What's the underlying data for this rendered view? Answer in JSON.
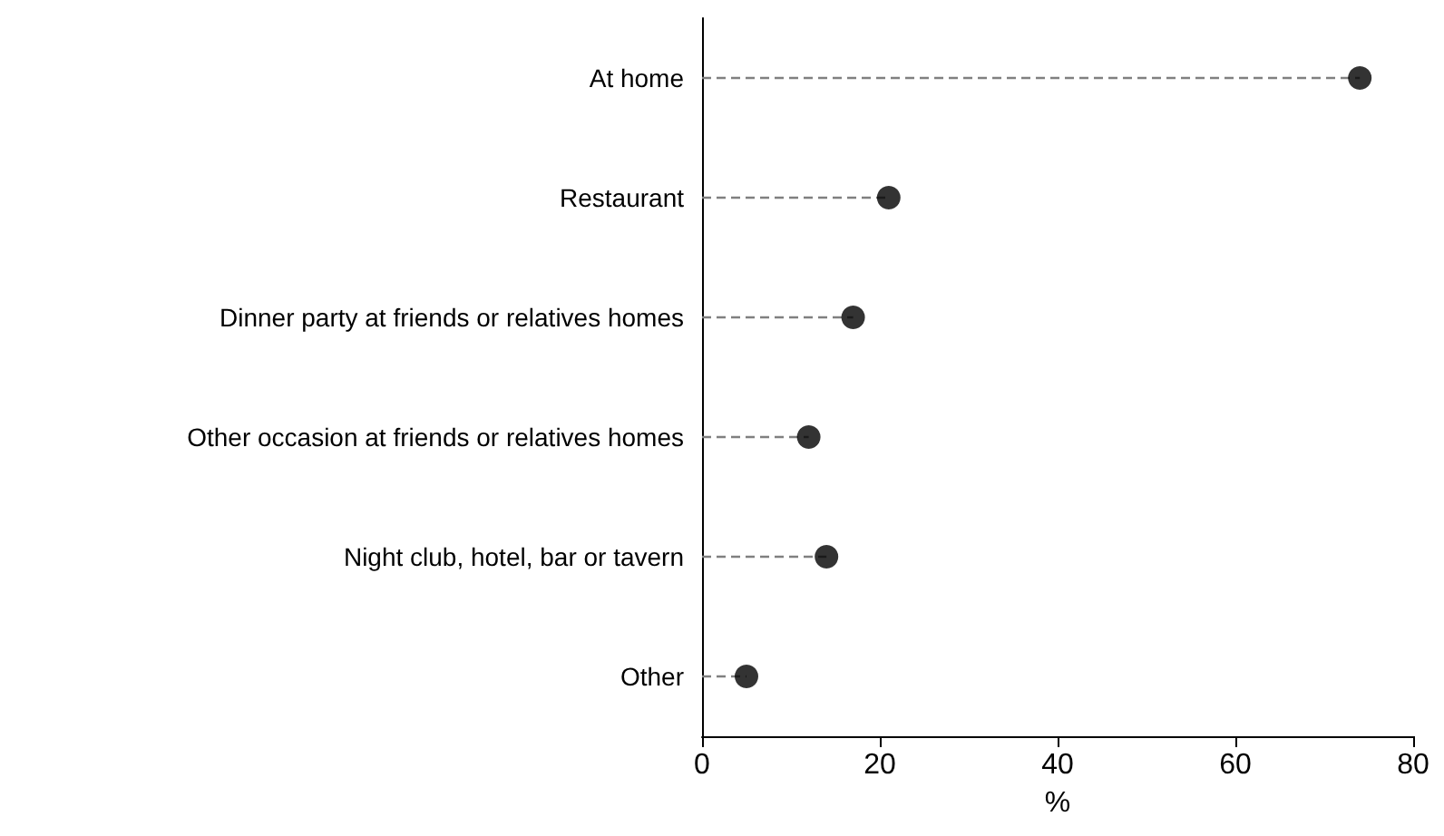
{
  "chart_data": {
    "type": "lollipop",
    "orientation": "horizontal",
    "categories": [
      "At home",
      "Restaurant",
      "Dinner party at friends or relatives homes",
      "Other occasion at friends or relatives homes",
      "Night club, hotel, bar or tavern",
      "Other"
    ],
    "values": [
      74,
      21,
      17,
      12,
      14,
      5
    ],
    "color": "#000000",
    "xlabel": "%",
    "xlim": [
      0,
      80
    ],
    "xticks": [
      0,
      20,
      40,
      60,
      80
    ],
    "marker": "circle",
    "line_style": "dashed",
    "grid": false
  }
}
